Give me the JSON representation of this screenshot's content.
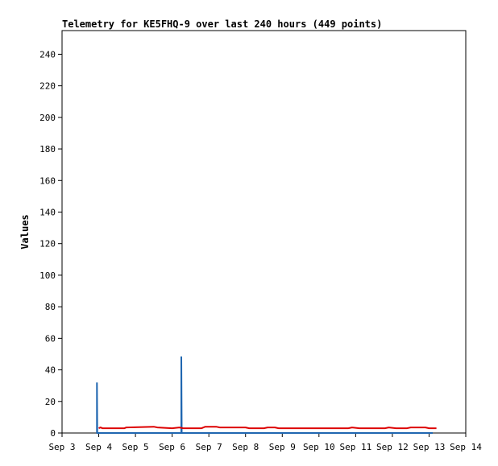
{
  "chart_data": {
    "type": "line",
    "title": "Telemetry for KE5FHQ-9 over last 240 hours (449 points)",
    "ylabel": "Values",
    "xlabel": "",
    "ylim": [
      0,
      255
    ],
    "xlim": [
      3,
      14
    ],
    "y_ticks": [
      0,
      20,
      40,
      60,
      80,
      100,
      120,
      140,
      160,
      180,
      200,
      220,
      240
    ],
    "x_ticks": [
      {
        "x": 3,
        "label": "Sep 3"
      },
      {
        "x": 4,
        "label": "Sep 4"
      },
      {
        "x": 5,
        "label": "Sep 5"
      },
      {
        "x": 6,
        "label": "Sep 6"
      },
      {
        "x": 7,
        "label": "Sep 7"
      },
      {
        "x": 8,
        "label": "Sep 8"
      },
      {
        "x": 9,
        "label": "Sep 9"
      },
      {
        "x": 10,
        "label": "Sep 10"
      },
      {
        "x": 11,
        "label": "Sep 11"
      },
      {
        "x": 12,
        "label": "Sep 12"
      },
      {
        "x": 13,
        "label": "Sep 13"
      },
      {
        "x": 14,
        "label": "Sep 14"
      }
    ],
    "grid": false,
    "legend": "none",
    "series": [
      {
        "color": "#1f66b0",
        "points": [
          [
            3.95,
            0
          ],
          [
            3.95,
            32
          ],
          [
            3.96,
            0
          ],
          [
            6.25,
            0
          ],
          [
            6.25,
            48.5
          ],
          [
            6.26,
            0
          ],
          [
            13.1,
            0
          ]
        ]
      },
      {
        "color": "#dd0000",
        "points": [
          [
            4.0,
            3
          ],
          [
            4.05,
            3.5
          ],
          [
            4.1,
            3
          ],
          [
            4.7,
            3
          ],
          [
            4.75,
            3.5
          ],
          [
            5.5,
            4
          ],
          [
            5.6,
            3.5
          ],
          [
            6.0,
            3
          ],
          [
            6.2,
            3.5
          ],
          [
            6.3,
            3
          ],
          [
            6.8,
            3
          ],
          [
            6.9,
            4
          ],
          [
            7.2,
            4
          ],
          [
            7.3,
            3.5
          ],
          [
            8.0,
            3.5
          ],
          [
            8.1,
            3
          ],
          [
            8.5,
            3
          ],
          [
            8.6,
            3.5
          ],
          [
            8.8,
            3.5
          ],
          [
            8.9,
            3
          ],
          [
            10.5,
            3
          ],
          [
            10.8,
            3
          ],
          [
            10.9,
            3.5
          ],
          [
            11.1,
            3
          ],
          [
            11.8,
            3
          ],
          [
            11.9,
            3.5
          ],
          [
            12.1,
            3
          ],
          [
            12.4,
            3
          ],
          [
            12.5,
            3.5
          ],
          [
            12.9,
            3.5
          ],
          [
            13.0,
            3
          ],
          [
            13.2,
            3
          ]
        ]
      }
    ],
    "colors": {
      "axis": "#000000",
      "title": "#000000",
      "blue": "#1f66b0",
      "red": "#dd0000",
      "black_series": "#000000"
    }
  }
}
